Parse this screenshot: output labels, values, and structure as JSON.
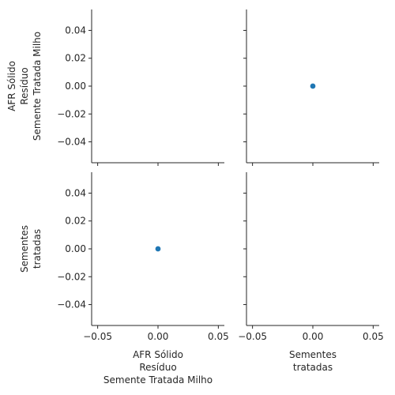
{
  "chart_data": {
    "type": "scatter",
    "layout": "pairplot",
    "variables": [
      {
        "label_lines": [
          "AFR Sólido",
          "Resíduo",
          "Semente Tratada Milho"
        ]
      },
      {
        "label_lines": [
          "Sementes",
          "tratadas"
        ]
      }
    ],
    "xlim": [
      -0.055,
      0.055
    ],
    "ylim": [
      -0.055,
      0.055
    ],
    "x_ticks": [
      -0.05,
      0.0,
      0.05
    ],
    "x_tick_labels": [
      "−0.05",
      "0.00",
      "0.05"
    ],
    "y_ticks": [
      0.04,
      0.02,
      0.0,
      -0.02,
      -0.04
    ],
    "y_tick_labels": [
      "0.04",
      "0.02",
      "0.00",
      "−0.02",
      "−0.04"
    ],
    "panels": [
      {
        "row": 0,
        "col": 0,
        "points": []
      },
      {
        "row": 0,
        "col": 1,
        "points": [
          {
            "x": 0.0,
            "y": 0.0
          }
        ]
      },
      {
        "row": 1,
        "col": 0,
        "points": [
          {
            "x": 0.0,
            "y": 0.0
          }
        ]
      },
      {
        "row": 1,
        "col": 1,
        "points": []
      }
    ],
    "point_color": "#1f77b4",
    "grid": false,
    "legend": "none"
  }
}
